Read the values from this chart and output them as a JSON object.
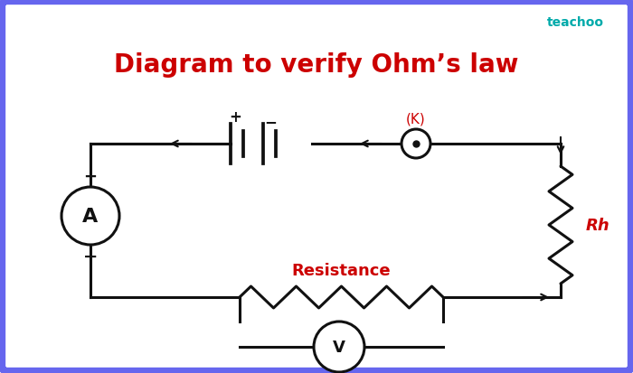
{
  "title": "Diagram to verify Ohm’s law",
  "title_color": "#cc0000",
  "title_fontsize": 20,
  "bg_color": "#ffffff",
  "border_color": "#6666ee",
  "circuit_color": "#111111",
  "label_color_red": "#cc0000",
  "teachoo_text": "teachoo",
  "teachoo_color": "#00aaaa",
  "circuit_lw": 2.2,
  "ammeter_label": "A",
  "voltmeter_label": "V",
  "resistance_label": "Resistance",
  "rh_label": "Rh",
  "k_label": "(K)",
  "plus_label": "+",
  "minus_label": "−",
  "bat_plus": "+",
  "bat_minus": "−"
}
